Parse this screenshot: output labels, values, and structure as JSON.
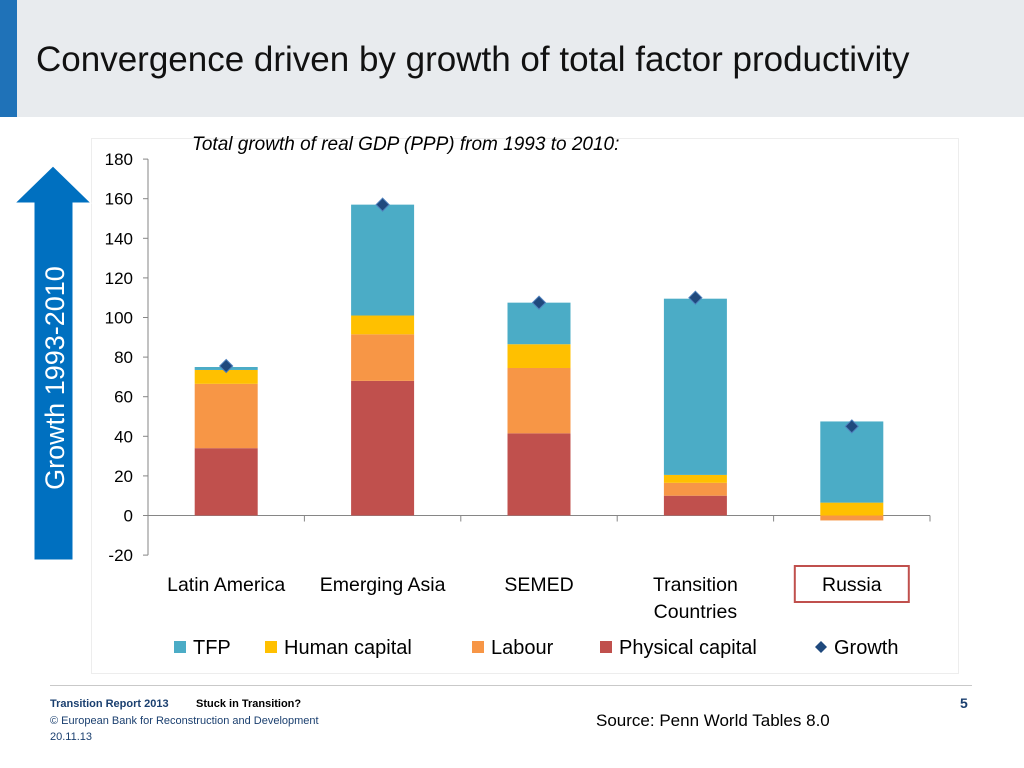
{
  "slide": {
    "title": "Convergence driven by growth of total factor productivity",
    "subtitle": "Total growth of real GDP (PPP) from 1993 to 2010:",
    "arrow_label": "Growth 1993-2010",
    "page_number": "5",
    "source_label": "Source:",
    "source_text": " Penn World Tables 8.0",
    "footer": {
      "report": "Transition Report 2013",
      "topic": "Stuck in Transition?",
      "copyright": "© European Bank for Reconstruction and Development",
      "date": "20.11.13"
    }
  },
  "colors": {
    "accent": "#1f72b8",
    "TFP": "#4bacc6",
    "Human capital": "#ffc000",
    "Labour": "#f79646",
    "Physical capital": "#c0504d",
    "Growth": "#1f497d",
    "highlight_box": "#c0504d"
  },
  "chart_data": {
    "type": "bar",
    "stacked": true,
    "categories": [
      "Latin America",
      "Emerging Asia",
      "SEMED",
      "Transition Countries",
      "Russia"
    ],
    "category_lines": [
      [
        "Latin America"
      ],
      [
        "Emerging Asia"
      ],
      [
        "SEMED"
      ],
      [
        "Transition",
        "Countries"
      ],
      [
        "Russia"
      ]
    ],
    "highlighted_category": "Russia",
    "series": [
      {
        "name": "Physical capital",
        "values": [
          34,
          68,
          41.5,
          10,
          0
        ]
      },
      {
        "name": "Labour",
        "values": [
          32.5,
          23.5,
          33,
          6.5,
          -2.5
        ]
      },
      {
        "name": "Human capital",
        "values": [
          7,
          9.5,
          12,
          4,
          6.5
        ]
      },
      {
        "name": "TFP",
        "values": [
          1.5,
          56,
          21,
          89,
          41
        ]
      }
    ],
    "line_series": {
      "name": "Growth",
      "marker": "diamond",
      "values": [
        75.5,
        157,
        107.5,
        110,
        45
      ]
    },
    "legend": [
      "TFP",
      "Human capital",
      "Labour",
      "Physical capital",
      "Growth"
    ],
    "legend_position": "bottom",
    "ylim": [
      -20,
      180
    ],
    "yticks": [
      -20,
      0,
      20,
      40,
      60,
      80,
      100,
      120,
      140,
      160,
      180
    ],
    "grid": false
  }
}
